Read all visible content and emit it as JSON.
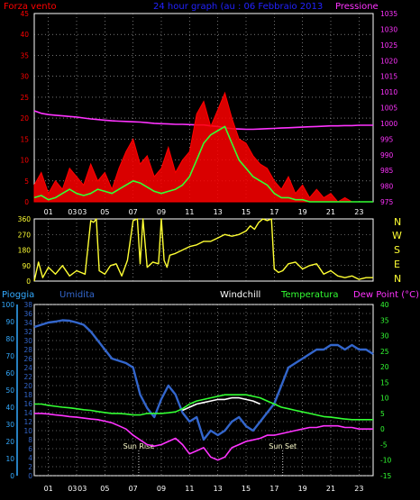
{
  "chart_data": [
    {
      "id": "wind",
      "type": "line",
      "title": "24 hour graph (au : 06 Febbraio 2013",
      "left_label": "Forza vento",
      "right_label": "Pressione",
      "x_tick_labels": [
        "01",
        "03",
        "03",
        "05",
        "07",
        "09",
        "11",
        "13",
        "15",
        "17",
        "19",
        "21",
        "23"
      ],
      "ylim_left": [
        0,
        45
      ],
      "yticks_left": [
        0,
        5,
        10,
        15,
        20,
        25,
        30,
        35,
        40,
        45
      ],
      "ylim_right": [
        975,
        1035
      ],
      "yticks_right": [
        975,
        980,
        985,
        990,
        995,
        1000,
        1005,
        1010,
        1015,
        1020,
        1025,
        1030,
        1035
      ],
      "grid": true,
      "series": [
        {
          "axis": "right",
          "color": "#ff33ff",
          "x": [
            0,
            0.5,
            1,
            1.5,
            2,
            2.5,
            3,
            3.5,
            4,
            4.5,
            5,
            5.5,
            6,
            6.5,
            7,
            7.5,
            8,
            8.5,
            9,
            9.5,
            10,
            10.5,
            11,
            11.5,
            12,
            12.5,
            13,
            13.5,
            14,
            14.5,
            15,
            15.5,
            16,
            16.5,
            17,
            17.5,
            18,
            18.5,
            19,
            19.5,
            20,
            20.5,
            21,
            21.5,
            22,
            22.5,
            23,
            23.5,
            24
          ],
          "values": [
            1004,
            1003.2,
            1002.8,
            1002.6,
            1002.4,
            1002.2,
            1002,
            1001.7,
            1001.4,
            1001.2,
            1001,
            1000.8,
            1000.7,
            1000.6,
            1000.5,
            1000.4,
            1000.2,
            1000,
            999.9,
            999.8,
            999.7,
            999.7,
            999.6,
            999.5,
            999.5,
            999.2,
            999,
            998.6,
            998.3,
            998.2,
            998.1,
            998.1,
            998.2,
            998.3,
            998.4,
            998.5,
            998.6,
            998.7,
            998.8,
            998.9,
            999,
            999.1,
            999.2,
            999.2,
            999.3,
            999.3,
            999.4,
            999.4,
            999.4
          ]
        },
        {
          "axis": "left",
          "color": "#ff0000",
          "x": [
            0,
            0.5,
            1,
            1.5,
            2,
            2.5,
            3,
            3.5,
            4,
            4.5,
            5,
            5.5,
            6,
            6.5,
            7,
            7.5,
            8,
            8.5,
            9,
            9.5,
            10,
            10.5,
            11,
            11.5,
            12,
            12.5,
            13,
            13.5,
            14,
            14.5,
            15,
            15.5,
            16,
            16.5,
            17,
            17.5,
            18,
            18.5,
            19,
            19.5,
            20,
            20.5,
            21,
            21.5,
            22,
            22.5,
            23,
            23.5,
            24
          ],
          "values": [
            4,
            7,
            2,
            5,
            3,
            8,
            6,
            4,
            9,
            5,
            7,
            3,
            8,
            12,
            15,
            9,
            11,
            6,
            8,
            13,
            7,
            10,
            12,
            21,
            24,
            18,
            22,
            26,
            20,
            15,
            14,
            11,
            9,
            8,
            5,
            3,
            6,
            2,
            4,
            1,
            3,
            1,
            2,
            0,
            1,
            0,
            0,
            0,
            0
          ]
        },
        {
          "axis": "left",
          "color": "#33ff33",
          "x": [
            0,
            0.5,
            1,
            1.5,
            2,
            2.5,
            3,
            3.5,
            4,
            4.5,
            5,
            5.5,
            6,
            6.5,
            7,
            7.5,
            8,
            8.5,
            9,
            9.5,
            10,
            10.5,
            11,
            11.5,
            12,
            12.5,
            13,
            13.5,
            14,
            14.5,
            15,
            15.5,
            16,
            16.5,
            17,
            17.5,
            18,
            18.5,
            19,
            19.5,
            20,
            20.5,
            21,
            21.5,
            22,
            22.5,
            23,
            23.5,
            24
          ],
          "values": [
            1,
            1.5,
            0.5,
            1,
            2,
            3,
            2,
            1.5,
            2,
            3,
            2.5,
            2,
            3,
            4,
            5,
            4.5,
            3.5,
            2.5,
            2,
            2.5,
            3,
            4,
            6,
            10,
            14,
            16,
            17,
            18,
            14,
            10,
            8,
            6,
            5,
            4,
            2,
            1,
            1,
            0.5,
            0.5,
            0,
            0,
            0,
            0,
            0,
            0,
            0,
            0,
            0,
            0
          ]
        }
      ]
    },
    {
      "id": "direction",
      "type": "line",
      "right_letters": [
        "N",
        "W",
        "S",
        "E",
        "N"
      ],
      "ylim": [
        0,
        360
      ],
      "yticks": [
        0,
        90,
        180,
        270,
        360
      ],
      "grid": true,
      "series": [
        {
          "color": "#ffff33",
          "x": [
            0,
            0.3,
            0.6,
            1,
            1.5,
            2,
            2.5,
            3,
            3.3,
            3.6,
            4,
            4.2,
            4.4,
            4.6,
            5,
            5.4,
            5.8,
            6.2,
            6.6,
            7,
            7.3,
            7.5,
            7.7,
            8,
            8.4,
            8.8,
            9,
            9.2,
            9.4,
            9.6,
            10,
            10.5,
            11,
            11.5,
            12,
            12.5,
            13,
            13.5,
            14,
            14.5,
            15,
            15.3,
            15.6,
            15.9,
            16.2,
            16.5,
            16.8,
            17,
            17.3,
            17.6,
            18,
            18.5,
            19,
            19.5,
            20,
            20.5,
            21,
            21.5,
            22,
            22.5,
            23,
            23.5,
            24
          ],
          "values": [
            0,
            110,
            20,
            80,
            40,
            90,
            30,
            60,
            50,
            40,
            350,
            340,
            360,
            60,
            40,
            90,
            100,
            30,
            120,
            350,
            360,
            100,
            360,
            80,
            110,
            100,
            360,
            120,
            80,
            150,
            160,
            180,
            200,
            210,
            230,
            230,
            250,
            270,
            260,
            270,
            290,
            320,
            300,
            340,
            360,
            350,
            360,
            70,
            50,
            60,
            100,
            110,
            70,
            90,
            100,
            40,
            60,
            30,
            20,
            30,
            10,
            20,
            20
          ]
        }
      ]
    },
    {
      "id": "weather",
      "type": "line",
      "labels": [
        "Pioggia",
        "Umidita",
        "Windchill",
        "Temperatura",
        "Dew Point (°C)"
      ],
      "annotations": [
        "Sun Rise",
        "Sun Set"
      ],
      "ylim_rain": [
        0,
        100
      ],
      "yticks_rain": [
        0,
        10,
        20,
        30,
        40,
        50,
        60,
        70,
        80,
        90,
        100
      ],
      "ylim_hum": [
        0,
        38
      ],
      "yticks_hum": [
        0,
        2,
        4,
        6,
        8,
        10,
        12,
        14,
        16,
        18,
        20,
        22,
        24,
        26,
        28,
        30,
        32,
        34,
        36,
        38
      ],
      "ylim_right": [
        -15,
        40
      ],
      "yticks_right": [
        -15,
        -10,
        -5,
        0,
        5,
        10,
        15,
        20,
        25,
        30,
        35,
        40
      ],
      "grid": true,
      "sun_rise_hour": 7.4,
      "sun_set_hour": 17.6,
      "series": [
        {
          "name": "Umidita",
          "axis": "hum",
          "color": "#3366cc",
          "x": [
            0,
            0.5,
            1,
            1.5,
            2,
            2.5,
            3,
            3.5,
            4,
            4.5,
            5,
            5.5,
            6,
            6.5,
            7,
            7.5,
            8,
            8.5,
            9,
            9.5,
            10,
            10.5,
            11,
            11.5,
            12,
            12.5,
            13,
            13.5,
            14,
            14.5,
            15,
            15.5,
            16,
            16.5,
            17,
            17.5,
            18,
            18.5,
            19,
            19.5,
            20,
            20.5,
            21,
            21.5,
            22,
            22.5,
            23,
            23.5,
            24
          ],
          "values": [
            33,
            33.5,
            34,
            34.2,
            34.5,
            34.4,
            34,
            33.5,
            32,
            30,
            28,
            26,
            25.5,
            25,
            24,
            18,
            15,
            13,
            17,
            20,
            18,
            14,
            12,
            13,
            8,
            10,
            9,
            10,
            12,
            13,
            11,
            10,
            12,
            14,
            16,
            20,
            24,
            25,
            26,
            27,
            28,
            28,
            29,
            29,
            28,
            29,
            28,
            28,
            27
          ]
        },
        {
          "name": "Temperatura",
          "axis": "right",
          "color": "#33ff33",
          "x": [
            0,
            0.5,
            1,
            1.5,
            2,
            2.5,
            3,
            3.5,
            4,
            4.5,
            5,
            5.5,
            6,
            6.5,
            7,
            7.5,
            8,
            8.5,
            9,
            9.5,
            10,
            10.5,
            11,
            11.5,
            12,
            12.5,
            13,
            13.5,
            14,
            14.5,
            15,
            15.5,
            16,
            16.5,
            17,
            17.5,
            18,
            18.5,
            19,
            19.5,
            20,
            20.5,
            21,
            21.5,
            22,
            22.5,
            23,
            23.5,
            24
          ],
          "values": [
            8,
            8,
            7.6,
            7.3,
            7,
            6.8,
            6.5,
            6.2,
            6,
            5.6,
            5.3,
            5,
            5,
            4.8,
            4.5,
            4.5,
            5,
            5,
            5,
            5.2,
            5.5,
            6.5,
            8,
            9,
            9.5,
            10,
            10.5,
            11,
            11,
            11,
            11,
            10.5,
            10,
            9,
            8,
            7,
            6.5,
            6,
            5.5,
            5,
            4.5,
            4,
            3.8,
            3.5,
            3.2,
            3,
            3,
            3,
            3
          ]
        },
        {
          "name": "Windchill",
          "axis": "right",
          "color": "#ffffff",
          "x": [
            10.5,
            11,
            11.5,
            12,
            12.5,
            13,
            13.5,
            14,
            14.5,
            15,
            15.5,
            16
          ],
          "values": [
            6,
            7,
            8,
            8.5,
            9,
            9.5,
            9.5,
            10,
            10,
            9.5,
            9,
            8
          ]
        },
        {
          "name": "Dew Point",
          "axis": "right",
          "color": "#ff33ff",
          "x": [
            0,
            0.5,
            1,
            1.5,
            2,
            2.5,
            3,
            3.5,
            4,
            4.5,
            5,
            5.5,
            6,
            6.5,
            7,
            7.5,
            8,
            8.5,
            9,
            9.5,
            10,
            10.5,
            11,
            11.5,
            12,
            12.5,
            13,
            13.5,
            14,
            14.5,
            15,
            15.5,
            16,
            16.5,
            17,
            17.5,
            18,
            18.5,
            19,
            19.5,
            20,
            20.5,
            21,
            21.5,
            22,
            22.5,
            23,
            23.5,
            24
          ],
          "values": [
            5,
            5,
            4.8,
            4.5,
            4.3,
            4,
            3.8,
            3.5,
            3.2,
            3,
            2.5,
            2,
            1,
            0,
            -2,
            -3.5,
            -5,
            -5.5,
            -5,
            -4,
            -3,
            -5,
            -8,
            -7,
            -6,
            -9,
            -10,
            -9,
            -6,
            -5,
            -4,
            -3.5,
            -3,
            -2,
            -2,
            -1.5,
            -1,
            -0.5,
            0,
            0.5,
            0.5,
            1,
            1,
            1,
            0.5,
            0.5,
            0,
            0,
            0
          ]
        }
      ]
    }
  ],
  "colors": {
    "background": "#000000",
    "grid": "#bbbbbb",
    "frame": "#ffffff",
    "red": "#ff0000",
    "blue": "#2222ff",
    "magenta": "#ff33ff",
    "yellow": "#ffff33",
    "green": "#33ff33",
    "cyan": "#33aaff",
    "humidity": "#3366cc"
  }
}
